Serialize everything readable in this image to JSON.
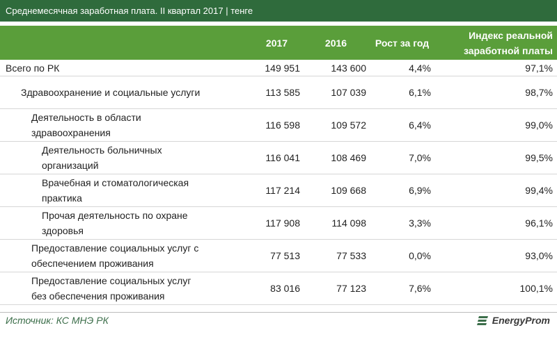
{
  "header": {
    "title": "Среднемесячная заработная плата. II квартал 2017 | тенге"
  },
  "table": {
    "columns": [
      "2017",
      "2016",
      "Рост за год",
      "Индекс реальной заработной платы"
    ],
    "rows": [
      [
        "Всего по РК",
        "149 951",
        "143 600",
        "4,4%",
        "97,1%"
      ],
      [
        "Здравоохранение и социальные услуги",
        "113 585",
        "107 039",
        "6,1%",
        "98,7%"
      ],
      [
        "Деятельность в области здравоохранения",
        "116 598",
        "109 572",
        "6,4%",
        "99,0%"
      ],
      [
        "Деятельность больничных организаций",
        "116 041",
        "108 469",
        "7,0%",
        "99,5%"
      ],
      [
        "Врачебная и стоматологическая практика",
        "117 214",
        "109 668",
        "6,9%",
        "99,4%"
      ],
      [
        "Прочая деятельность по охране здоровья",
        "117 908",
        "114 098",
        "3,3%",
        "96,1%"
      ],
      [
        "Предоставление социальных услуг с обеспечением проживания",
        "77 513",
        "77 533",
        "0,0%",
        "93,0%"
      ],
      [
        "Предоставление социальных услуг без обеспечения проживания",
        "83 016",
        "77 123",
        "7,6%",
        "100,1%"
      ]
    ]
  },
  "footer": {
    "source": "Источник: КС МНЭ РК",
    "logo": "EnergyProm"
  }
}
